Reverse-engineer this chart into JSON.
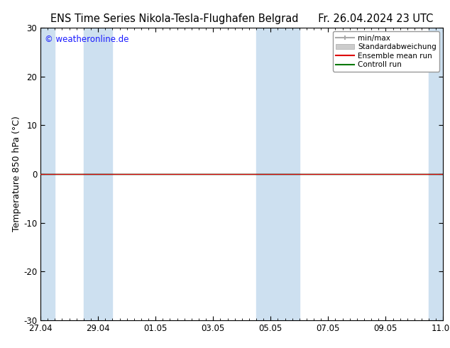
{
  "title_left": "ENS Time Series Nikola-Tesla-Flughafen Belgrad",
  "title_right": "Fr. 26.04.2024 23 UTC",
  "ylabel": "Temperature 850 hPa (°C)",
  "ylim": [
    -30,
    30
  ],
  "yticks": [
    -30,
    -20,
    -10,
    0,
    10,
    20,
    30
  ],
  "xlim_start": 0,
  "xlim_end": 14,
  "xtick_labels": [
    "27.04",
    "29.04",
    "01.05",
    "03.05",
    "05.05",
    "07.05",
    "09.05",
    "11.05"
  ],
  "xtick_positions": [
    0,
    2,
    4,
    6,
    8,
    10,
    12,
    14
  ],
  "watermark": "© weatheronline.de",
  "watermark_color": "#1a1aff",
  "bg_color": "#ffffff",
  "plot_bg_color": "#ffffff",
  "shading_color": "#cde0f0",
  "shaded_bands": [
    [
      0.0,
      0.5
    ],
    [
      1.5,
      2.5
    ],
    [
      7.5,
      8.5
    ],
    [
      8.5,
      9.0
    ],
    [
      13.5,
      14.0
    ]
  ],
  "zero_line_color": "#000000",
  "green_line_color": "#007700",
  "red_line_color": "#dd0000",
  "legend_minmax_color": "#aaaaaa",
  "legend_std_color": "#cccccc",
  "title_fontsize": 10.5,
  "axis_label_fontsize": 9,
  "tick_fontsize": 8.5,
  "watermark_fontsize": 8.5
}
